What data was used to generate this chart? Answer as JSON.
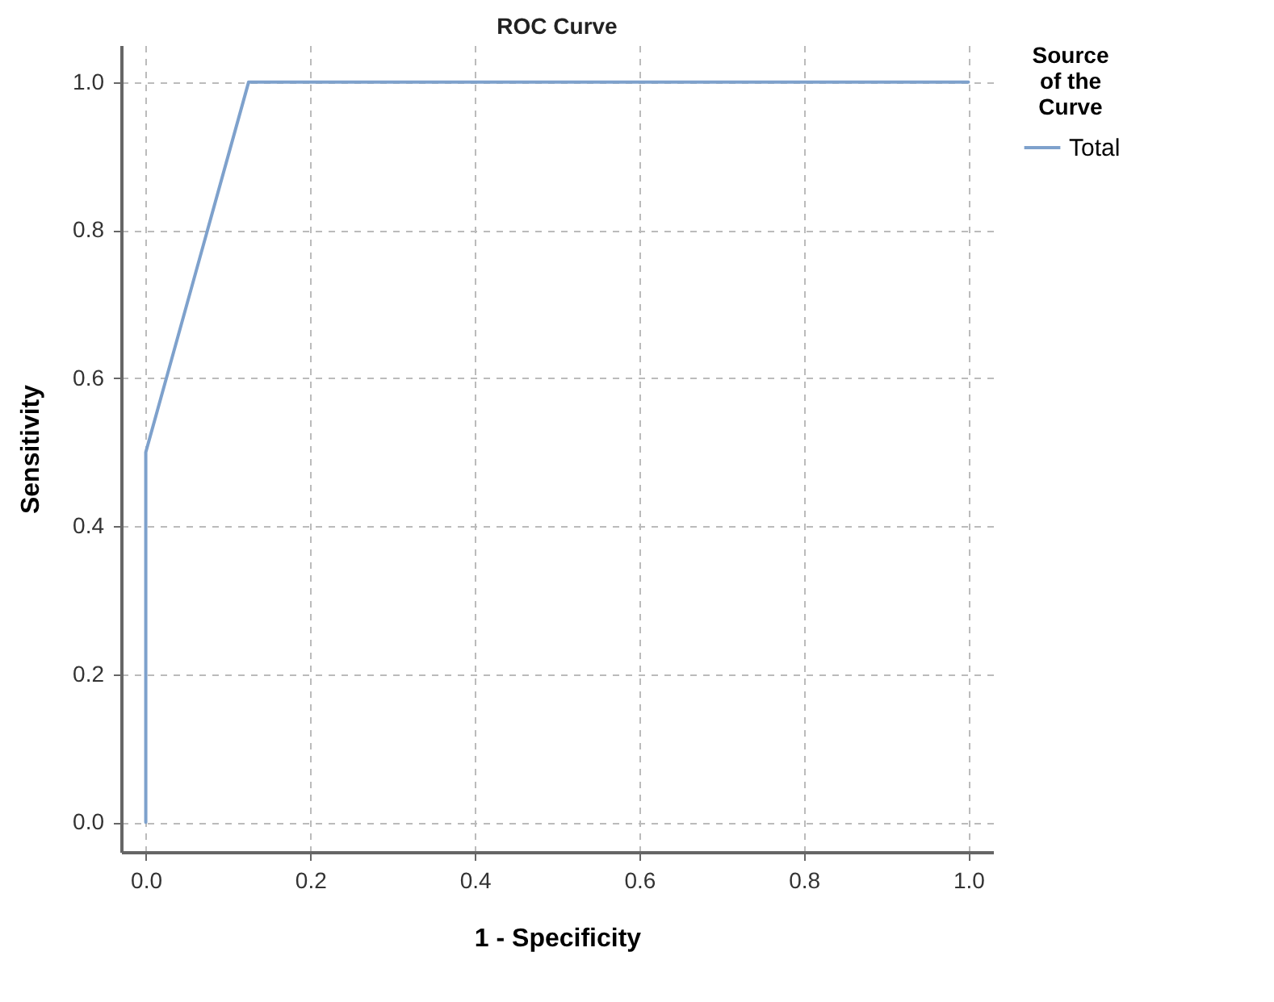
{
  "chart_data": {
    "type": "line",
    "title": "ROC Curve",
    "xlabel": "1 - Specificity",
    "ylabel": "Sensitivity",
    "legend_title": "Source of the Curve",
    "x": [
      0,
      0,
      0.125,
      1
    ],
    "series": [
      {
        "name": "Total",
        "color": "#7ea1cc",
        "values": [
          0,
          0.5,
          1,
          1
        ]
      }
    ],
    "xlim": [
      -0.03,
      1.03
    ],
    "ylim": [
      -0.04,
      1.05
    ],
    "xticks": [
      {
        "value": 0,
        "label": "0.0"
      },
      {
        "value": 0.2,
        "label": "0.2"
      },
      {
        "value": 0.4,
        "label": "0.4"
      },
      {
        "value": 0.6,
        "label": "0.6"
      },
      {
        "value": 0.8,
        "label": "0.8"
      },
      {
        "value": 1,
        "label": "1.0"
      }
    ],
    "yticks": [
      {
        "value": 0,
        "label": "0.0"
      },
      {
        "value": 0.2,
        "label": "0.2"
      },
      {
        "value": 0.4,
        "label": "0.4"
      },
      {
        "value": 0.6,
        "label": "0.6"
      },
      {
        "value": 0.8,
        "label": "0.8"
      },
      {
        "value": 1,
        "label": "1.0"
      }
    ],
    "grid": true,
    "legend": "top right",
    "marker": "none",
    "line_style": "solid"
  }
}
